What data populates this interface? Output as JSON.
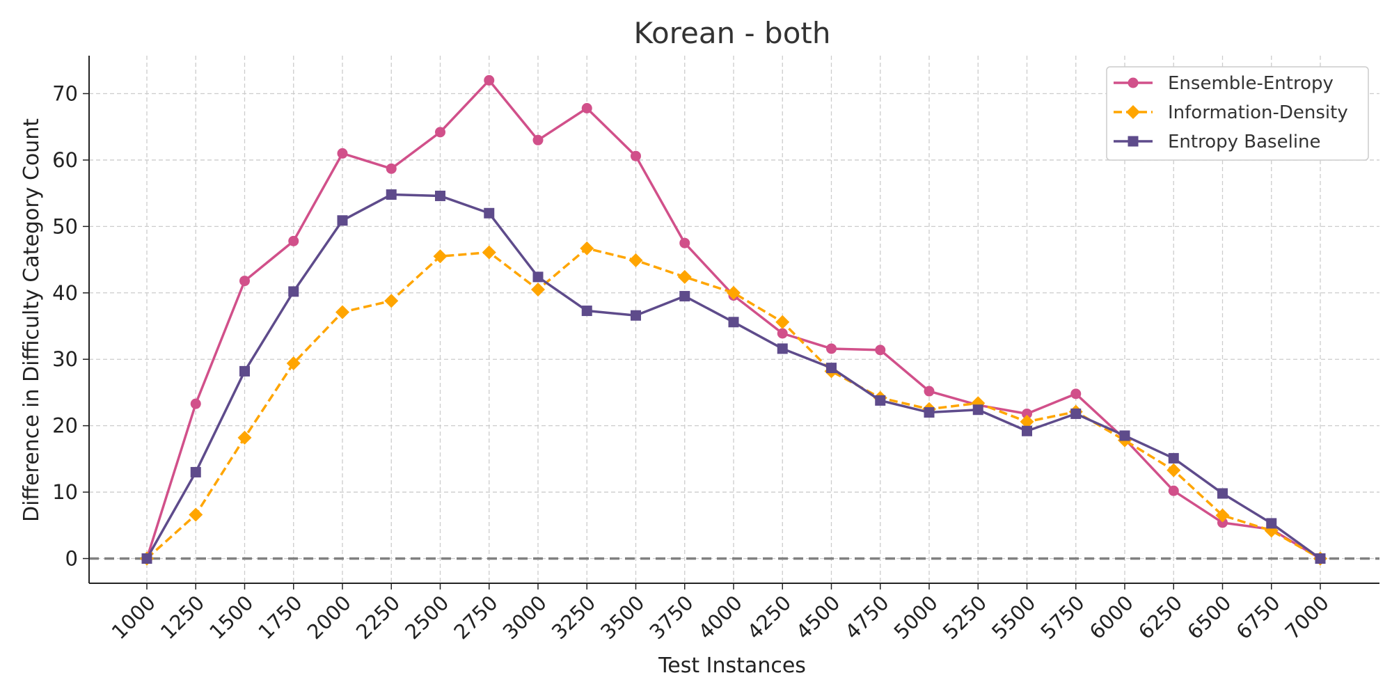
{
  "chart_data": {
    "type": "line",
    "title": "Korean - both",
    "xlabel": "Test Instances",
    "ylabel": "Difference in Difficulty Category Count",
    "x": [
      1000,
      1250,
      1500,
      1750,
      2000,
      2250,
      2500,
      2750,
      3000,
      3250,
      3500,
      3750,
      4000,
      4250,
      4500,
      4750,
      5000,
      5250,
      5500,
      5750,
      6000,
      6250,
      6500,
      6750,
      7000
    ],
    "x_tick_labels": [
      "1000",
      "1250",
      "1500",
      "1750",
      "2000",
      "2250",
      "2500",
      "2750",
      "3000",
      "3250",
      "3500",
      "3750",
      "4000",
      "4250",
      "4500",
      "4750",
      "5000",
      "5250",
      "5500",
      "5750",
      "6000",
      "6250",
      "6500",
      "6750",
      "7000"
    ],
    "y_ticks": [
      0,
      10,
      20,
      30,
      40,
      50,
      60,
      70
    ],
    "y_tick_labels": [
      "0",
      "10",
      "20",
      "30",
      "40",
      "50",
      "60",
      "70"
    ],
    "ylim": [
      -3.7,
      75.7
    ],
    "grid": true,
    "legend_position": "top-right",
    "reference_line": {
      "y": 0,
      "style": "dashed",
      "color": "#808080"
    },
    "series": [
      {
        "name": "Ensemble-Entropy",
        "color": "#d1508a",
        "marker": "circle",
        "line_style": "solid",
        "values": [
          0,
          23.3,
          41.8,
          47.8,
          61.0,
          58.7,
          64.2,
          72.0,
          63.0,
          67.8,
          60.6,
          47.5,
          39.6,
          33.9,
          31.6,
          31.4,
          25.2,
          23.1,
          21.8,
          24.8,
          18.0,
          10.2,
          5.4,
          4.4,
          0
        ]
      },
      {
        "name": "Information-Density",
        "color": "#ffa500",
        "marker": "diamond",
        "line_style": "dashed",
        "values": [
          0,
          6.6,
          18.2,
          29.4,
          37.1,
          38.8,
          45.5,
          46.1,
          40.5,
          46.7,
          44.9,
          42.4,
          40.0,
          35.6,
          28.2,
          24.2,
          22.5,
          23.4,
          20.6,
          22.1,
          17.8,
          13.3,
          6.5,
          4.2,
          0
        ]
      },
      {
        "name": "Entropy Baseline",
        "color": "#5e4b8b",
        "marker": "square",
        "line_style": "solid",
        "values": [
          0,
          13.0,
          28.2,
          40.2,
          50.9,
          54.8,
          54.6,
          52.0,
          42.4,
          37.3,
          36.6,
          39.5,
          35.6,
          31.6,
          28.7,
          23.8,
          22.0,
          22.4,
          19.2,
          21.8,
          18.5,
          15.1,
          9.8,
          5.3,
          0
        ]
      }
    ]
  }
}
